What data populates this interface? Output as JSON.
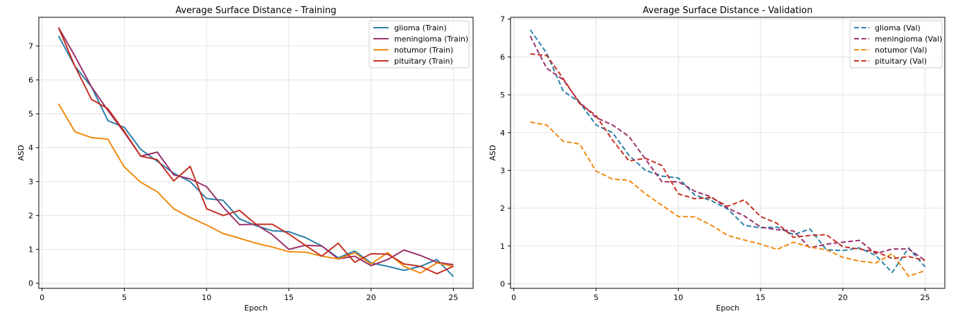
{
  "chart_data": [
    {
      "type": "line",
      "title": "Average Surface Distance - Training",
      "xlabel": "Epoch",
      "ylabel": "ASD",
      "xlim": [
        -0.2,
        26.2
      ],
      "ylim": [
        -0.15,
        7.85
      ],
      "xticks": [
        0,
        5,
        10,
        15,
        20,
        25
      ],
      "yticks": [
        0,
        1,
        2,
        3,
        4,
        5,
        6,
        7
      ],
      "grid": true,
      "legend_position": "top-right",
      "line_style": "solid",
      "x": [
        1,
        2,
        3,
        4,
        5,
        6,
        7,
        8,
        9,
        10,
        11,
        12,
        13,
        14,
        15,
        16,
        17,
        18,
        19,
        20,
        21,
        22,
        23,
        24,
        25
      ],
      "series": [
        {
          "name": "glioma (Train)",
          "color": "#2a7fa8",
          "values": [
            7.3,
            6.4,
            5.8,
            4.8,
            4.6,
            3.95,
            3.6,
            3.25,
            3.0,
            2.5,
            2.45,
            1.9,
            1.7,
            1.55,
            1.52,
            1.35,
            1.1,
            0.75,
            0.95,
            0.6,
            0.5,
            0.38,
            0.5,
            0.7,
            0.2
          ]
        },
        {
          "name": "meningioma (Train)",
          "color": "#9b2f6a",
          "values": [
            7.55,
            6.7,
            5.8,
            5.1,
            4.45,
            3.75,
            3.87,
            3.2,
            3.08,
            2.85,
            2.25,
            1.73,
            1.74,
            1.43,
            1.0,
            1.12,
            1.1,
            0.72,
            0.8,
            0.52,
            0.7,
            0.98,
            0.82,
            0.62,
            0.55
          ]
        },
        {
          "name": "notumor (Train)",
          "color": "#f0890d",
          "values": [
            5.3,
            4.47,
            4.3,
            4.25,
            3.43,
            2.98,
            2.7,
            2.2,
            1.94,
            1.72,
            1.47,
            1.33,
            1.18,
            1.07,
            0.93,
            0.92,
            0.8,
            0.72,
            0.9,
            0.57,
            0.9,
            0.5,
            0.3,
            0.6,
            0.5
          ]
        },
        {
          "name": "pituitary (Train)",
          "color": "#c52f22",
          "values": [
            7.55,
            6.4,
            5.43,
            5.15,
            4.48,
            3.75,
            3.65,
            3.02,
            3.45,
            2.2,
            2.0,
            2.15,
            1.74,
            1.74,
            1.45,
            1.12,
            0.8,
            1.18,
            0.62,
            0.87,
            0.86,
            0.57,
            0.5,
            0.28,
            0.5
          ]
        }
      ]
    },
    {
      "type": "line",
      "title": "Average Surface Distance - Validation",
      "xlabel": "Epoch",
      "ylabel": "ASD",
      "xlim": [
        -0.2,
        26.2
      ],
      "ylim": [
        -0.12,
        7.05
      ],
      "xticks": [
        0,
        5,
        10,
        15,
        20,
        25
      ],
      "yticks": [
        0,
        1,
        2,
        3,
        4,
        5,
        6,
        7
      ],
      "grid": true,
      "legend_position": "top-right",
      "line_style": "dashed",
      "x": [
        1,
        2,
        3,
        4,
        5,
        6,
        7,
        8,
        9,
        10,
        11,
        12,
        13,
        14,
        15,
        16,
        17,
        18,
        19,
        20,
        21,
        22,
        23,
        24,
        25
      ],
      "series": [
        {
          "name": "glioma (Val)",
          "color": "#2a7fa8",
          "values": [
            6.72,
            6.1,
            5.1,
            4.8,
            4.2,
            4.0,
            3.4,
            3.0,
            2.85,
            2.8,
            2.35,
            2.2,
            1.98,
            1.55,
            1.48,
            1.5,
            1.3,
            1.45,
            0.9,
            0.88,
            0.95,
            0.75,
            0.3,
            0.95,
            0.45
          ]
        },
        {
          "name": "meningioma (Val)",
          "color": "#9b2f6a",
          "values": [
            6.55,
            5.7,
            5.4,
            4.8,
            4.4,
            4.2,
            3.9,
            3.3,
            2.7,
            2.7,
            2.45,
            2.3,
            2.0,
            1.8,
            1.5,
            1.43,
            1.4,
            0.95,
            1.05,
            1.1,
            1.15,
            0.8,
            0.92,
            0.92,
            0.62
          ]
        },
        {
          "name": "notumor (Val)",
          "color": "#f0890d",
          "values": [
            4.28,
            4.2,
            3.77,
            3.7,
            2.98,
            2.77,
            2.74,
            2.38,
            2.08,
            1.78,
            1.77,
            1.55,
            1.28,
            1.16,
            1.05,
            0.91,
            1.1,
            0.97,
            0.9,
            0.7,
            0.6,
            0.55,
            0.8,
            0.2,
            0.35
          ]
        },
        {
          "name": "pituitary (Val)",
          "color": "#c52f22",
          "values": [
            6.08,
            6.04,
            5.43,
            4.77,
            4.45,
            3.8,
            3.25,
            3.32,
            3.13,
            2.38,
            2.25,
            2.28,
            2.05,
            2.22,
            1.78,
            1.6,
            1.23,
            1.28,
            1.3,
            0.98,
            0.92,
            0.85,
            0.67,
            0.72,
            0.62
          ]
        }
      ]
    }
  ]
}
